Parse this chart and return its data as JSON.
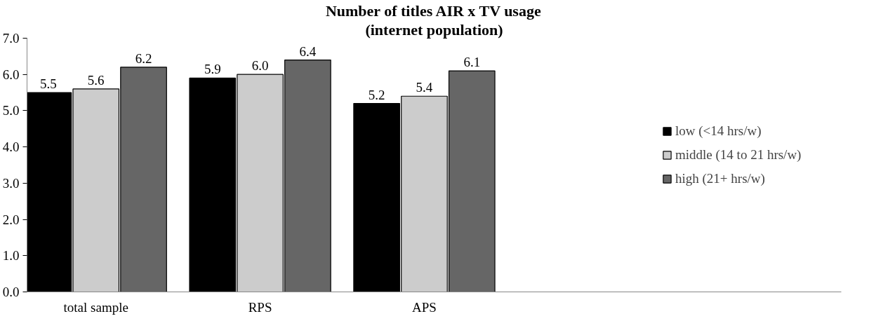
{
  "chart_data": {
    "type": "bar",
    "title": "Number of titles AIR x TV usage",
    "subtitle": "(internet population)",
    "categories": [
      "total sample",
      "RPS",
      "APS"
    ],
    "series": [
      {
        "name": "low (<14 hrs/w)",
        "color": "#000000",
        "values": [
          5.5,
          5.9,
          5.2
        ],
        "value_labels": [
          "5.5",
          "5.9",
          "5.2"
        ]
      },
      {
        "name": "middle (14 to 21 hrs/w)",
        "color": "#cccccc",
        "values": [
          5.6,
          6.0,
          5.4
        ],
        "value_labels": [
          "5.6",
          "6.0",
          "5.4"
        ]
      },
      {
        "name": "high (21+ hrs/w)",
        "color": "#666666",
        "values": [
          6.2,
          6.4,
          6.1
        ],
        "value_labels": [
          "6.2",
          "6.4",
          "6.1"
        ]
      }
    ],
    "ylim": [
      0,
      7
    ],
    "yticks": [
      {
        "value": 0,
        "label": "0.0"
      },
      {
        "value": 1,
        "label": "1.0"
      },
      {
        "value": 2,
        "label": "2.0"
      },
      {
        "value": 3,
        "label": "3.0"
      },
      {
        "value": 4,
        "label": "4.0"
      },
      {
        "value": 5,
        "label": "5.0"
      },
      {
        "value": 6,
        "label": "6.0"
      },
      {
        "value": 7,
        "label": "7.0"
      }
    ],
    "data_labels": true,
    "grid": false,
    "legend": "right"
  }
}
